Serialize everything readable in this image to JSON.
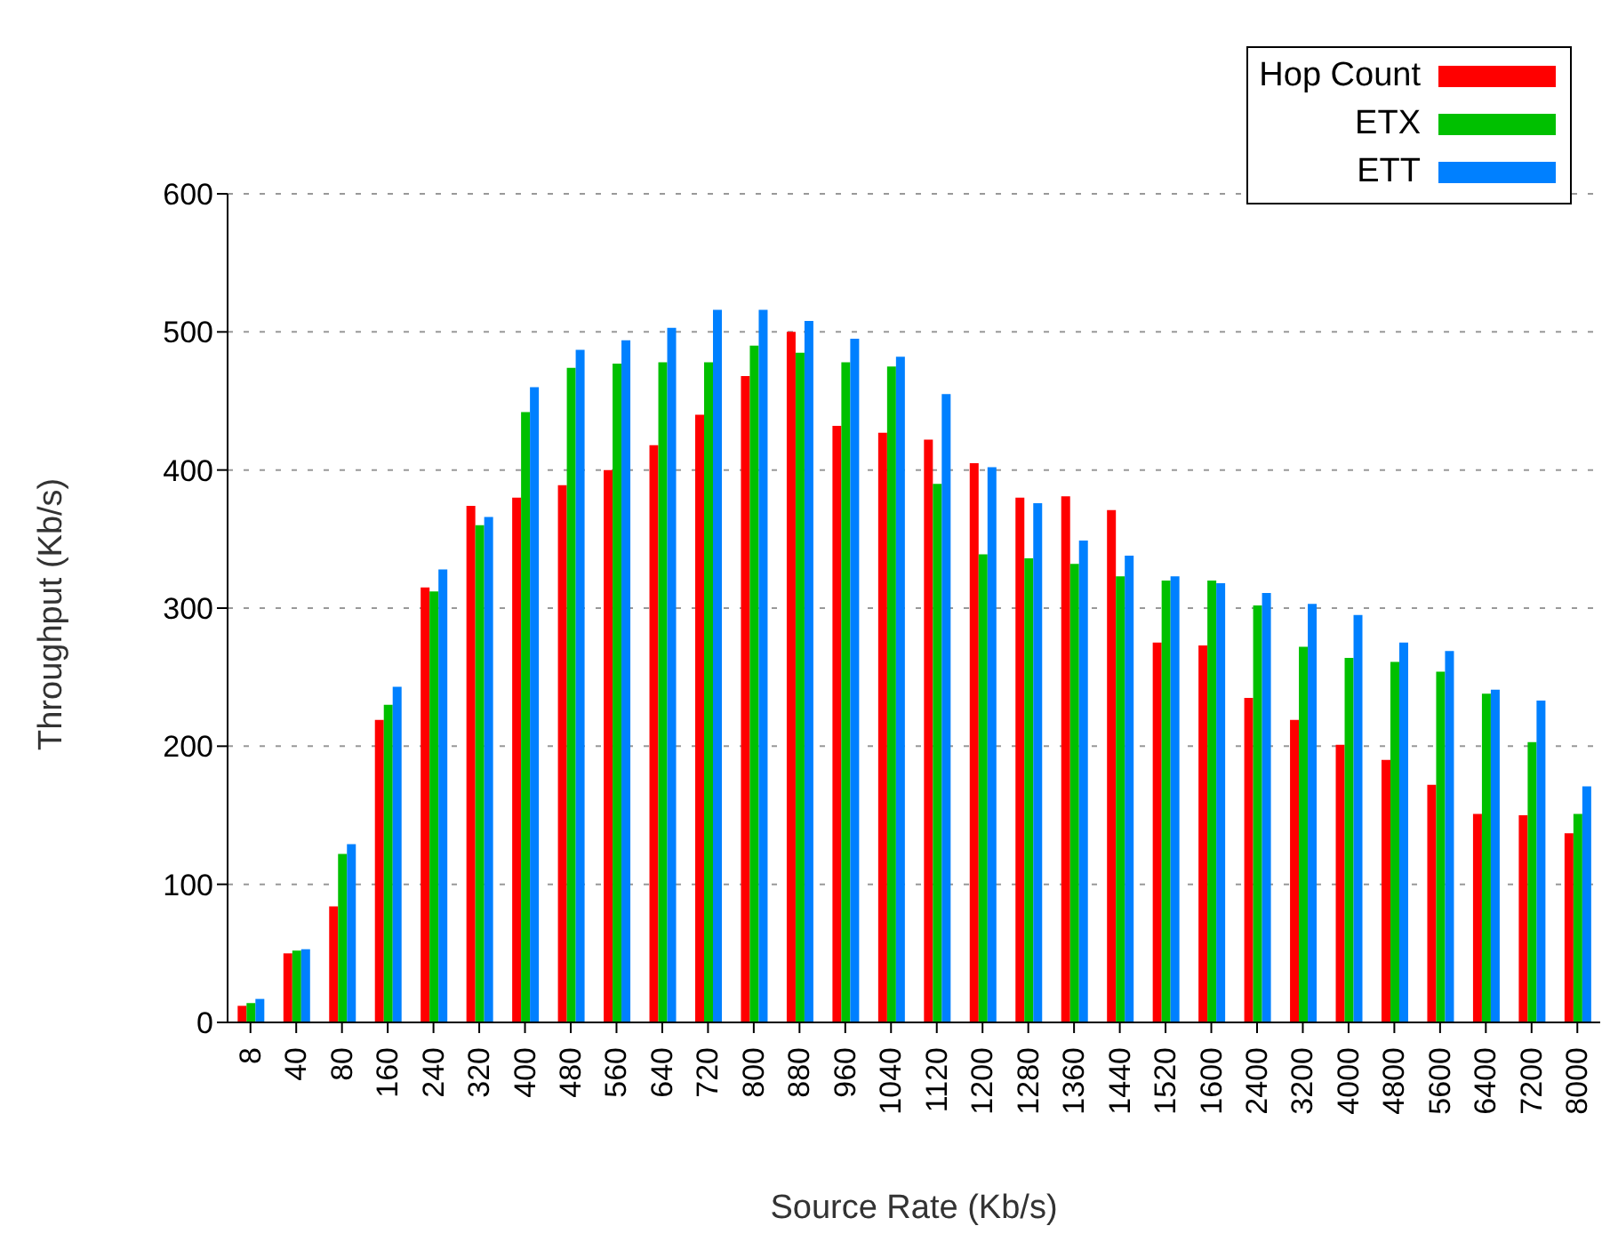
{
  "chart_data": {
    "type": "bar",
    "xlabel": "Source Rate (Kb/s)",
    "ylabel": "Throughput (Kb/s)",
    "categories": [
      "8",
      "40",
      "80",
      "160",
      "240",
      "320",
      "400",
      "480",
      "560",
      "640",
      "720",
      "800",
      "880",
      "960",
      "1040",
      "1120",
      "1200",
      "1280",
      "1360",
      "1440",
      "1520",
      "1600",
      "2400",
      "3200",
      "4000",
      "4800",
      "5600",
      "6400",
      "7200",
      "8000"
    ],
    "series": [
      {
        "name": "Hop Count",
        "color": "#ff0000",
        "values": [
          12,
          50,
          84,
          219,
          315,
          374,
          380,
          389,
          400,
          418,
          440,
          468,
          500,
          432,
          427,
          422,
          405,
          380,
          381,
          371,
          275,
          273,
          235,
          219,
          201,
          190,
          172,
          151,
          150,
          137
        ]
      },
      {
        "name": "ETX",
        "color": "#00c000",
        "values": [
          14,
          52,
          122,
          230,
          312,
          360,
          442,
          474,
          477,
          478,
          478,
          490,
          485,
          478,
          475,
          390,
          339,
          336,
          332,
          323,
          320,
          320,
          302,
          272,
          264,
          261,
          254,
          238,
          203,
          151
        ]
      },
      {
        "name": "ETT",
        "color": "#0080ff",
        "values": [
          17,
          53,
          129,
          243,
          328,
          366,
          460,
          487,
          494,
          503,
          516,
          516,
          508,
          495,
          482,
          455,
          402,
          376,
          349,
          338,
          323,
          318,
          311,
          303,
          295,
          275,
          269,
          241,
          233,
          171
        ]
      }
    ],
    "ylim": [
      0,
      600
    ],
    "yticks": [
      0,
      100,
      200,
      300,
      400,
      500,
      600
    ],
    "grid": "y",
    "legend": "top right"
  }
}
